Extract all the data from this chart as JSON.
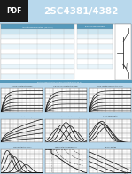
{
  "title": "2SC4381/4382",
  "pdf_label": "PDF",
  "header_blue": "#4ab0d4",
  "header_dark": "#1a1a1a",
  "page_bg": "#b8d8ec",
  "table_bg": "#ffffff",
  "table_header_bg": "#7ab8d4",
  "table_alt_bg": "#ddeef6",
  "plot_bg": "#ffffff",
  "plot_grid_color": "#aaaaaa",
  "curve_color": "#111111",
  "title_fontsize": 7.5,
  "pdf_fontsize": 5.5
}
